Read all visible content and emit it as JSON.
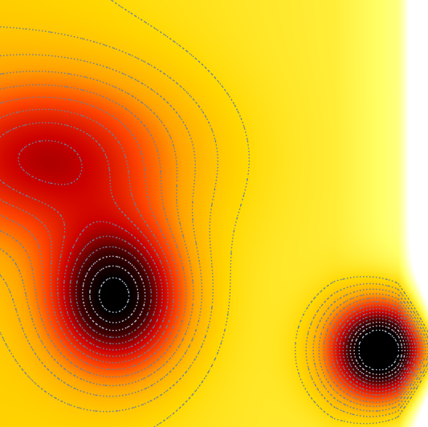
{
  "chart_data": {
    "type": "heatmap",
    "title": "",
    "xlabel": "",
    "ylabel": "",
    "colormap": [
      "#ffffff",
      "#ffff66",
      "#ffd700",
      "#ffa500",
      "#ff4500",
      "#cc0000",
      "#400000",
      "#000000"
    ],
    "contour_color": "#6b7f99",
    "grid": false,
    "legend": "none",
    "peaks": [
      {
        "name": "peak-left",
        "center": [
          0.27,
          0.7
        ],
        "height": 0.74,
        "sigma": [
          0.11,
          0.12
        ]
      },
      {
        "name": "peak-right",
        "center": [
          0.89,
          0.82
        ],
        "height": 1.0,
        "sigma": [
          0.085,
          0.085
        ]
      },
      {
        "name": "band-upper-left",
        "center": [
          0.12,
          0.37
        ],
        "height": 0.45,
        "sigma": [
          0.22,
          0.14
        ]
      }
    ]
  }
}
